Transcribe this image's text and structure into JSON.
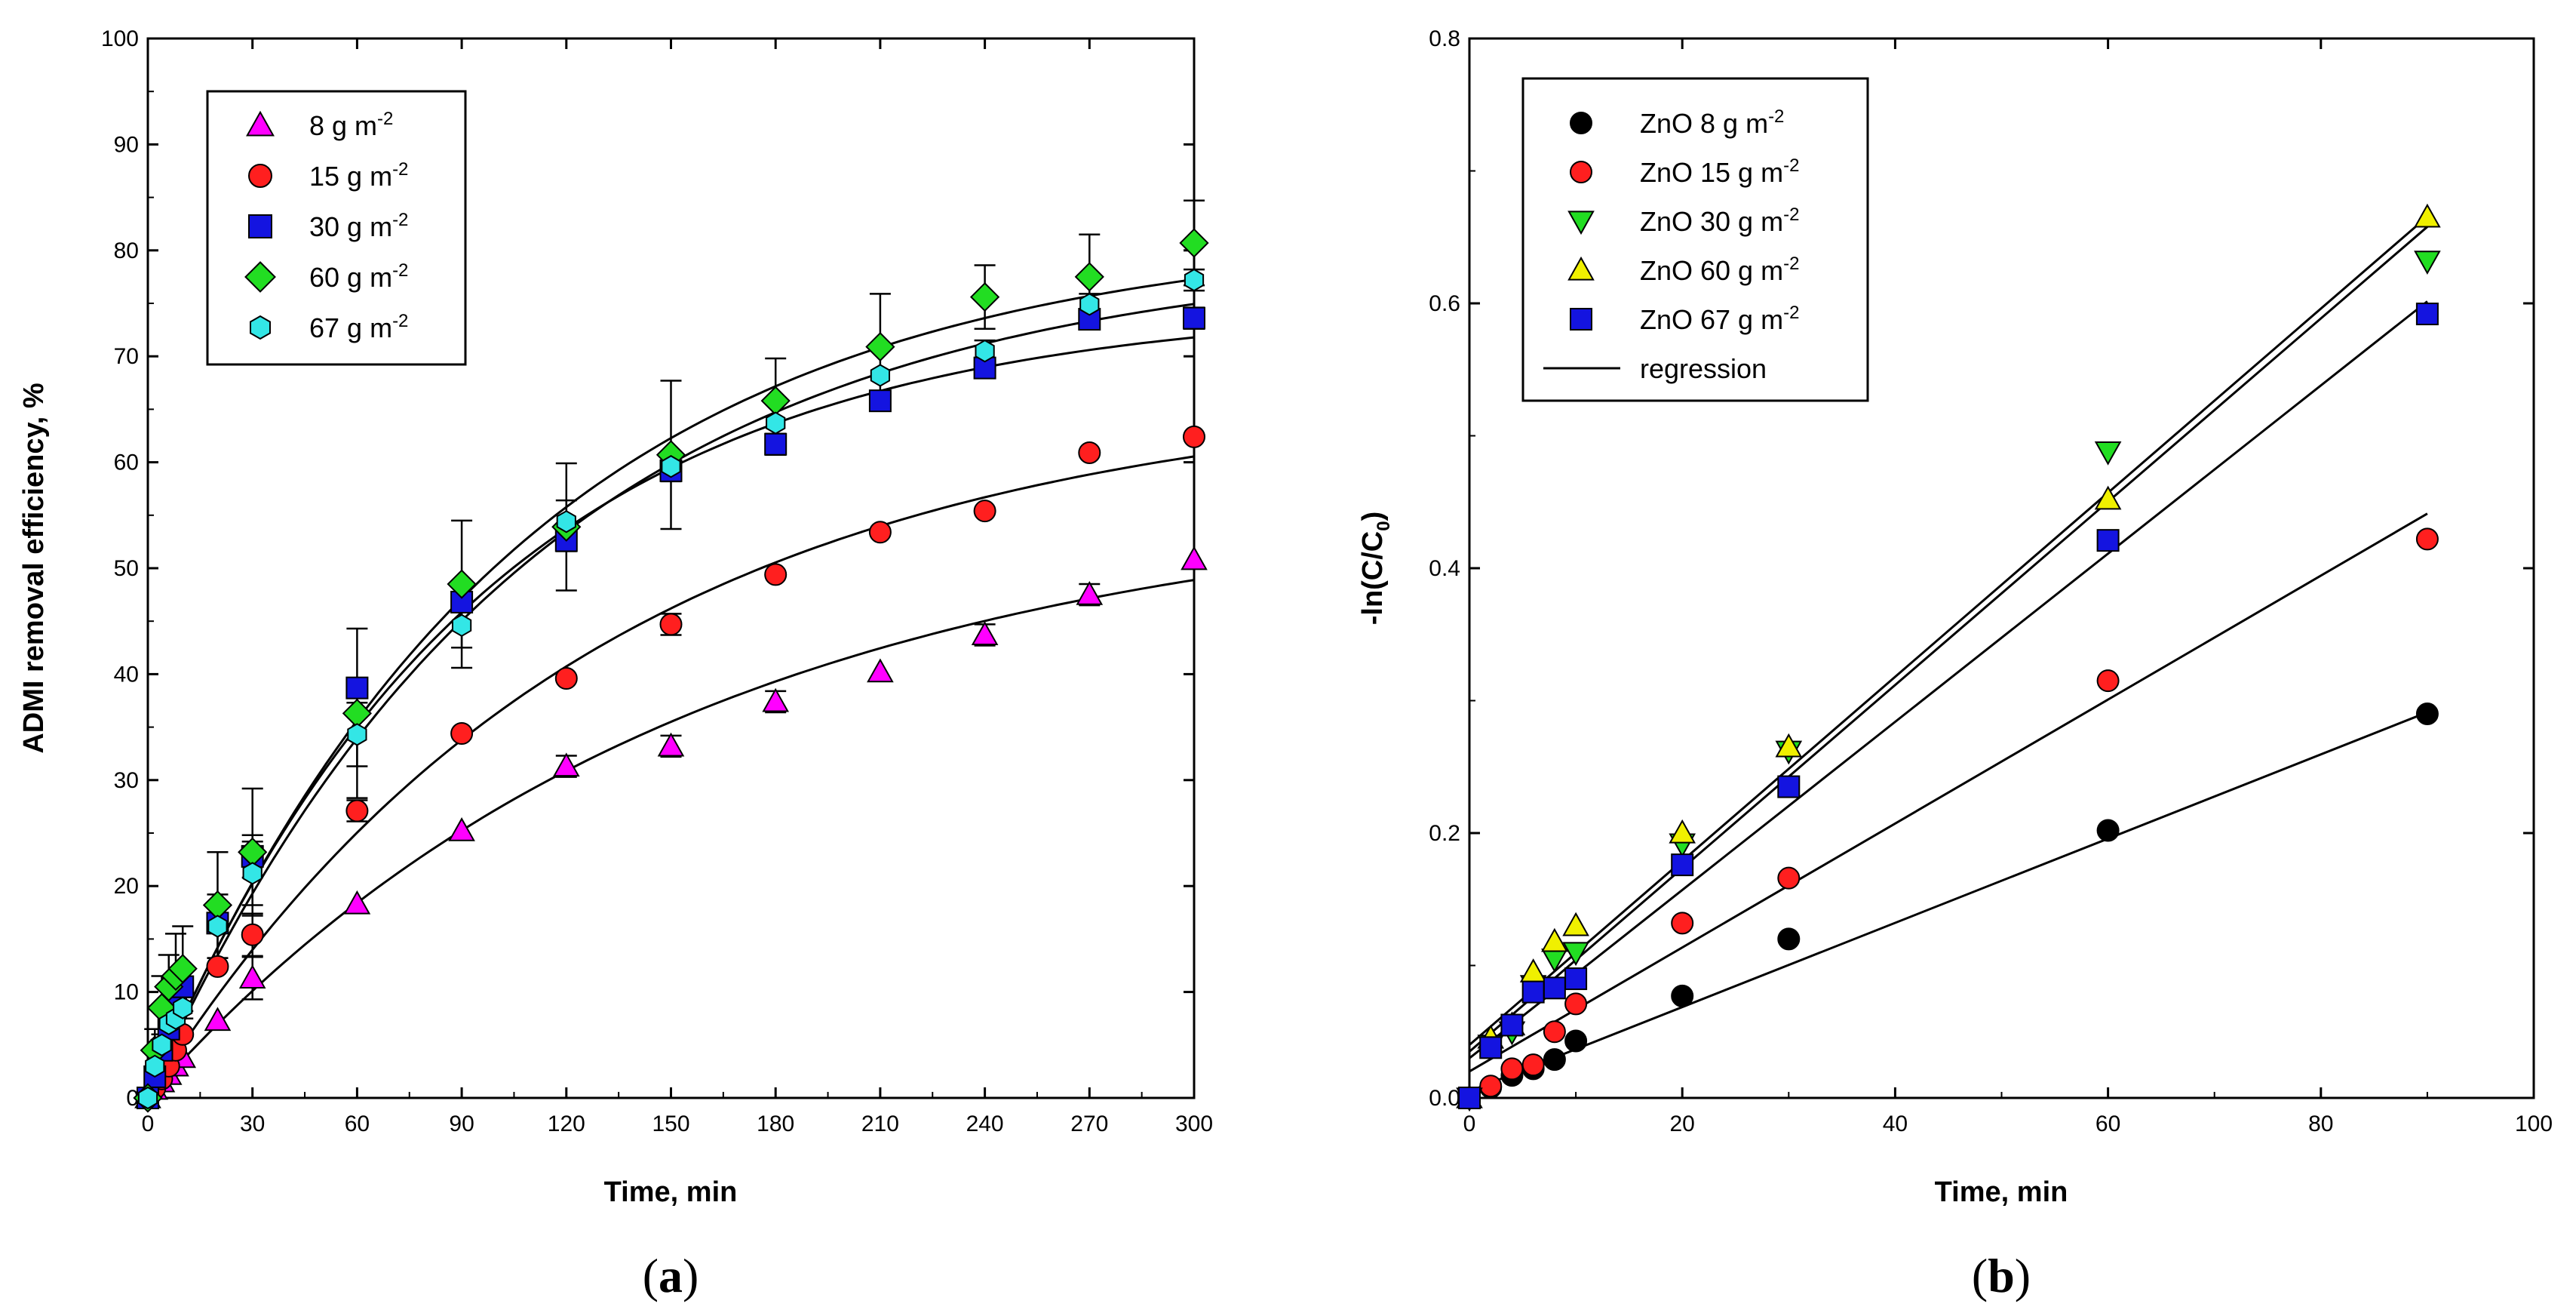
{
  "chart_data": [
    {
      "panel": "(a)",
      "type": "scatter",
      "xlabel": "Time, min",
      "ylabel": "ADMI removal efficiency, %",
      "xlim": [
        0,
        300
      ],
      "ylim": [
        0,
        100
      ],
      "xticks": [
        0,
        30,
        60,
        90,
        120,
        150,
        180,
        210,
        240,
        270,
        300
      ],
      "yticks": [
        0,
        10,
        20,
        30,
        40,
        50,
        60,
        70,
        80,
        90,
        100
      ],
      "legend_position": "top-left",
      "series": [
        {
          "name": "8 g m",
          "sup": "-2",
          "marker": "triangle-up",
          "color": "#ff00ff",
          "x": [
            0,
            2,
            4,
            6,
            8,
            10,
            20,
            30,
            60,
            90,
            120,
            150,
            180,
            210,
            240,
            270,
            300
          ],
          "y": [
            0,
            0.8,
            1.5,
            2.2,
            3,
            3.8,
            7.3,
            11.3,
            18.3,
            25.2,
            31.3,
            33.2,
            37.4,
            40.2,
            43.7,
            47.5,
            50.8
          ],
          "err": [
            0,
            0,
            0,
            0,
            0,
            0,
            0,
            2,
            0,
            0,
            1,
            1,
            1,
            0,
            1,
            1,
            0
          ],
          "fit": {
            "a": 57,
            "k": 0.0065
          }
        },
        {
          "name": "15 g m",
          "sup": "-2",
          "marker": "circle",
          "color": "#ff1f1f",
          "x": [
            0,
            2,
            4,
            6,
            8,
            10,
            20,
            30,
            60,
            90,
            120,
            150,
            180,
            210,
            240,
            270,
            300
          ],
          "y": [
            0,
            0.9,
            1.8,
            3,
            4.5,
            6,
            12.4,
            15.4,
            27.1,
            34.4,
            39.6,
            44.7,
            49.4,
            53.4,
            55.4,
            60.9,
            62.4
          ],
          "err": [
            0,
            0,
            0,
            0,
            0,
            0,
            0,
            2,
            1,
            0,
            0,
            1,
            0,
            0,
            0,
            0,
            0
          ],
          "fit": {
            "a": 67,
            "k": 0.0078
          }
        },
        {
          "name": "30 g m",
          "sup": "-2",
          "marker": "square",
          "color": "#1414e0",
          "x": [
            0,
            2,
            4,
            6,
            8,
            10,
            20,
            30,
            60,
            90,
            120,
            150,
            180,
            210,
            240,
            270,
            300
          ],
          "y": [
            0,
            2,
            4.5,
            6.5,
            8.5,
            10.5,
            16.5,
            22.8,
            38.7,
            46.8,
            52.6,
            59.2,
            61.7,
            65.8,
            68.9,
            73.5,
            73.6
          ],
          "err": [
            0,
            0,
            0,
            0,
            0,
            0,
            0,
            2,
            0,
            0,
            1,
            1,
            1,
            0,
            0,
            0,
            1
          ],
          "fit": {
            "a": 75,
            "k": 0.0105
          }
        },
        {
          "name": "60 g m",
          "sup": "-2",
          "marker": "diamond",
          "color": "#22dd22",
          "x": [
            0,
            2,
            4,
            6,
            8,
            10,
            20,
            30,
            60,
            90,
            120,
            150,
            180,
            210,
            240,
            270,
            300
          ],
          "y": [
            0,
            4.5,
            8.5,
            10.5,
            11.5,
            12.2,
            18.2,
            23.2,
            36.3,
            48.5,
            53.9,
            60.7,
            65.8,
            70.9,
            75.6,
            77.5,
            80.7
          ],
          "err": [
            0,
            2,
            3,
            3,
            4,
            4,
            5,
            6,
            8,
            6,
            6,
            7,
            4,
            5,
            3,
            4,
            4
          ],
          "fit": {
            "a": 82,
            "k": 0.0095
          }
        },
        {
          "name": "67 g m",
          "sup": "-2",
          "marker": "hexagon",
          "color": "#33e6e6",
          "x": [
            0,
            2,
            4,
            6,
            8,
            10,
            20,
            30,
            60,
            90,
            120,
            150,
            180,
            210,
            240,
            270,
            300
          ],
          "y": [
            0,
            3,
            5,
            7,
            7.5,
            8.5,
            16.2,
            21.2,
            34.3,
            44.6,
            54.4,
            59.6,
            63.7,
            68.2,
            70.5,
            74.9,
            77.2
          ],
          "err": [
            0,
            0,
            1,
            1,
            1,
            1,
            3,
            3,
            3,
            4,
            2,
            0,
            2,
            0,
            1,
            1,
            1
          ],
          "fit": {
            "a": 80,
            "k": 0.0092
          }
        }
      ]
    },
    {
      "panel": "(b)",
      "type": "scatter",
      "xlabel": "Time, min",
      "ylabel": "-ln(C/C",
      "ylabel_sub": "0",
      "ylabel_end": ")",
      "xlim": [
        0,
        100
      ],
      "ylim": [
        0,
        0.8
      ],
      "xticks": [
        0,
        20,
        40,
        60,
        80,
        100
      ],
      "yticks": [
        0.0,
        0.2,
        0.4,
        0.6,
        0.8
      ],
      "legend_position": "top-left",
      "series": [
        {
          "name": "ZnO 8 g m",
          "sup": "-2",
          "marker": "circle",
          "color": "#000000",
          "x": [
            0,
            2,
            4,
            6,
            8,
            10,
            20,
            30,
            60,
            90
          ],
          "y": [
            0,
            0.008,
            0.017,
            0.022,
            0.029,
            0.043,
            0.077,
            0.12,
            0.202,
            0.29
          ],
          "fit": {
            "slope": 0.00318,
            "intercept": 0.005
          }
        },
        {
          "name": "ZnO 15 g m",
          "sup": "-2",
          "marker": "circle",
          "color": "#ff1f1f",
          "x": [
            0,
            2,
            4,
            6,
            8,
            10,
            20,
            30,
            60,
            90
          ],
          "y": [
            0,
            0.009,
            0.022,
            0.025,
            0.05,
            0.071,
            0.132,
            0.166,
            0.315,
            0.422
          ],
          "fit": {
            "slope": 0.00468,
            "intercept": 0.02
          }
        },
        {
          "name": "ZnO 30 g m",
          "sup": "-2",
          "marker": "triangle-down",
          "color": "#22dd22",
          "x": [
            0,
            2,
            4,
            6,
            8,
            10,
            20,
            30,
            60,
            90
          ],
          "y": [
            0,
            0.04,
            0.05,
            0.085,
            0.105,
            0.11,
            0.192,
            0.262,
            0.488,
            0.632
          ],
          "fit": {
            "slope": 0.00695,
            "intercept": 0.04
          }
        },
        {
          "name": "ZnO 60 g m",
          "sup": "-2",
          "marker": "triangle-up",
          "color": "#f0f000",
          "x": [
            0,
            2,
            4,
            6,
            8,
            10,
            20,
            30,
            60,
            90
          ],
          "y": [
            0,
            0.045,
            0.055,
            0.095,
            0.118,
            0.13,
            0.2,
            0.265,
            0.452,
            0.665
          ],
          "fit": {
            "slope": 0.00692,
            "intercept": 0.035
          }
        },
        {
          "name": "ZnO 67 g m",
          "sup": "-2",
          "marker": "square",
          "color": "#1414e0",
          "x": [
            0,
            2,
            4,
            6,
            8,
            10,
            20,
            30,
            60,
            90
          ],
          "y": [
            0,
            0.038,
            0.055,
            0.08,
            0.083,
            0.09,
            0.176,
            0.235,
            0.421,
            0.592
          ],
          "fit": {
            "slope": 0.00635,
            "intercept": 0.03
          }
        }
      ],
      "regression_label": "regression"
    }
  ]
}
